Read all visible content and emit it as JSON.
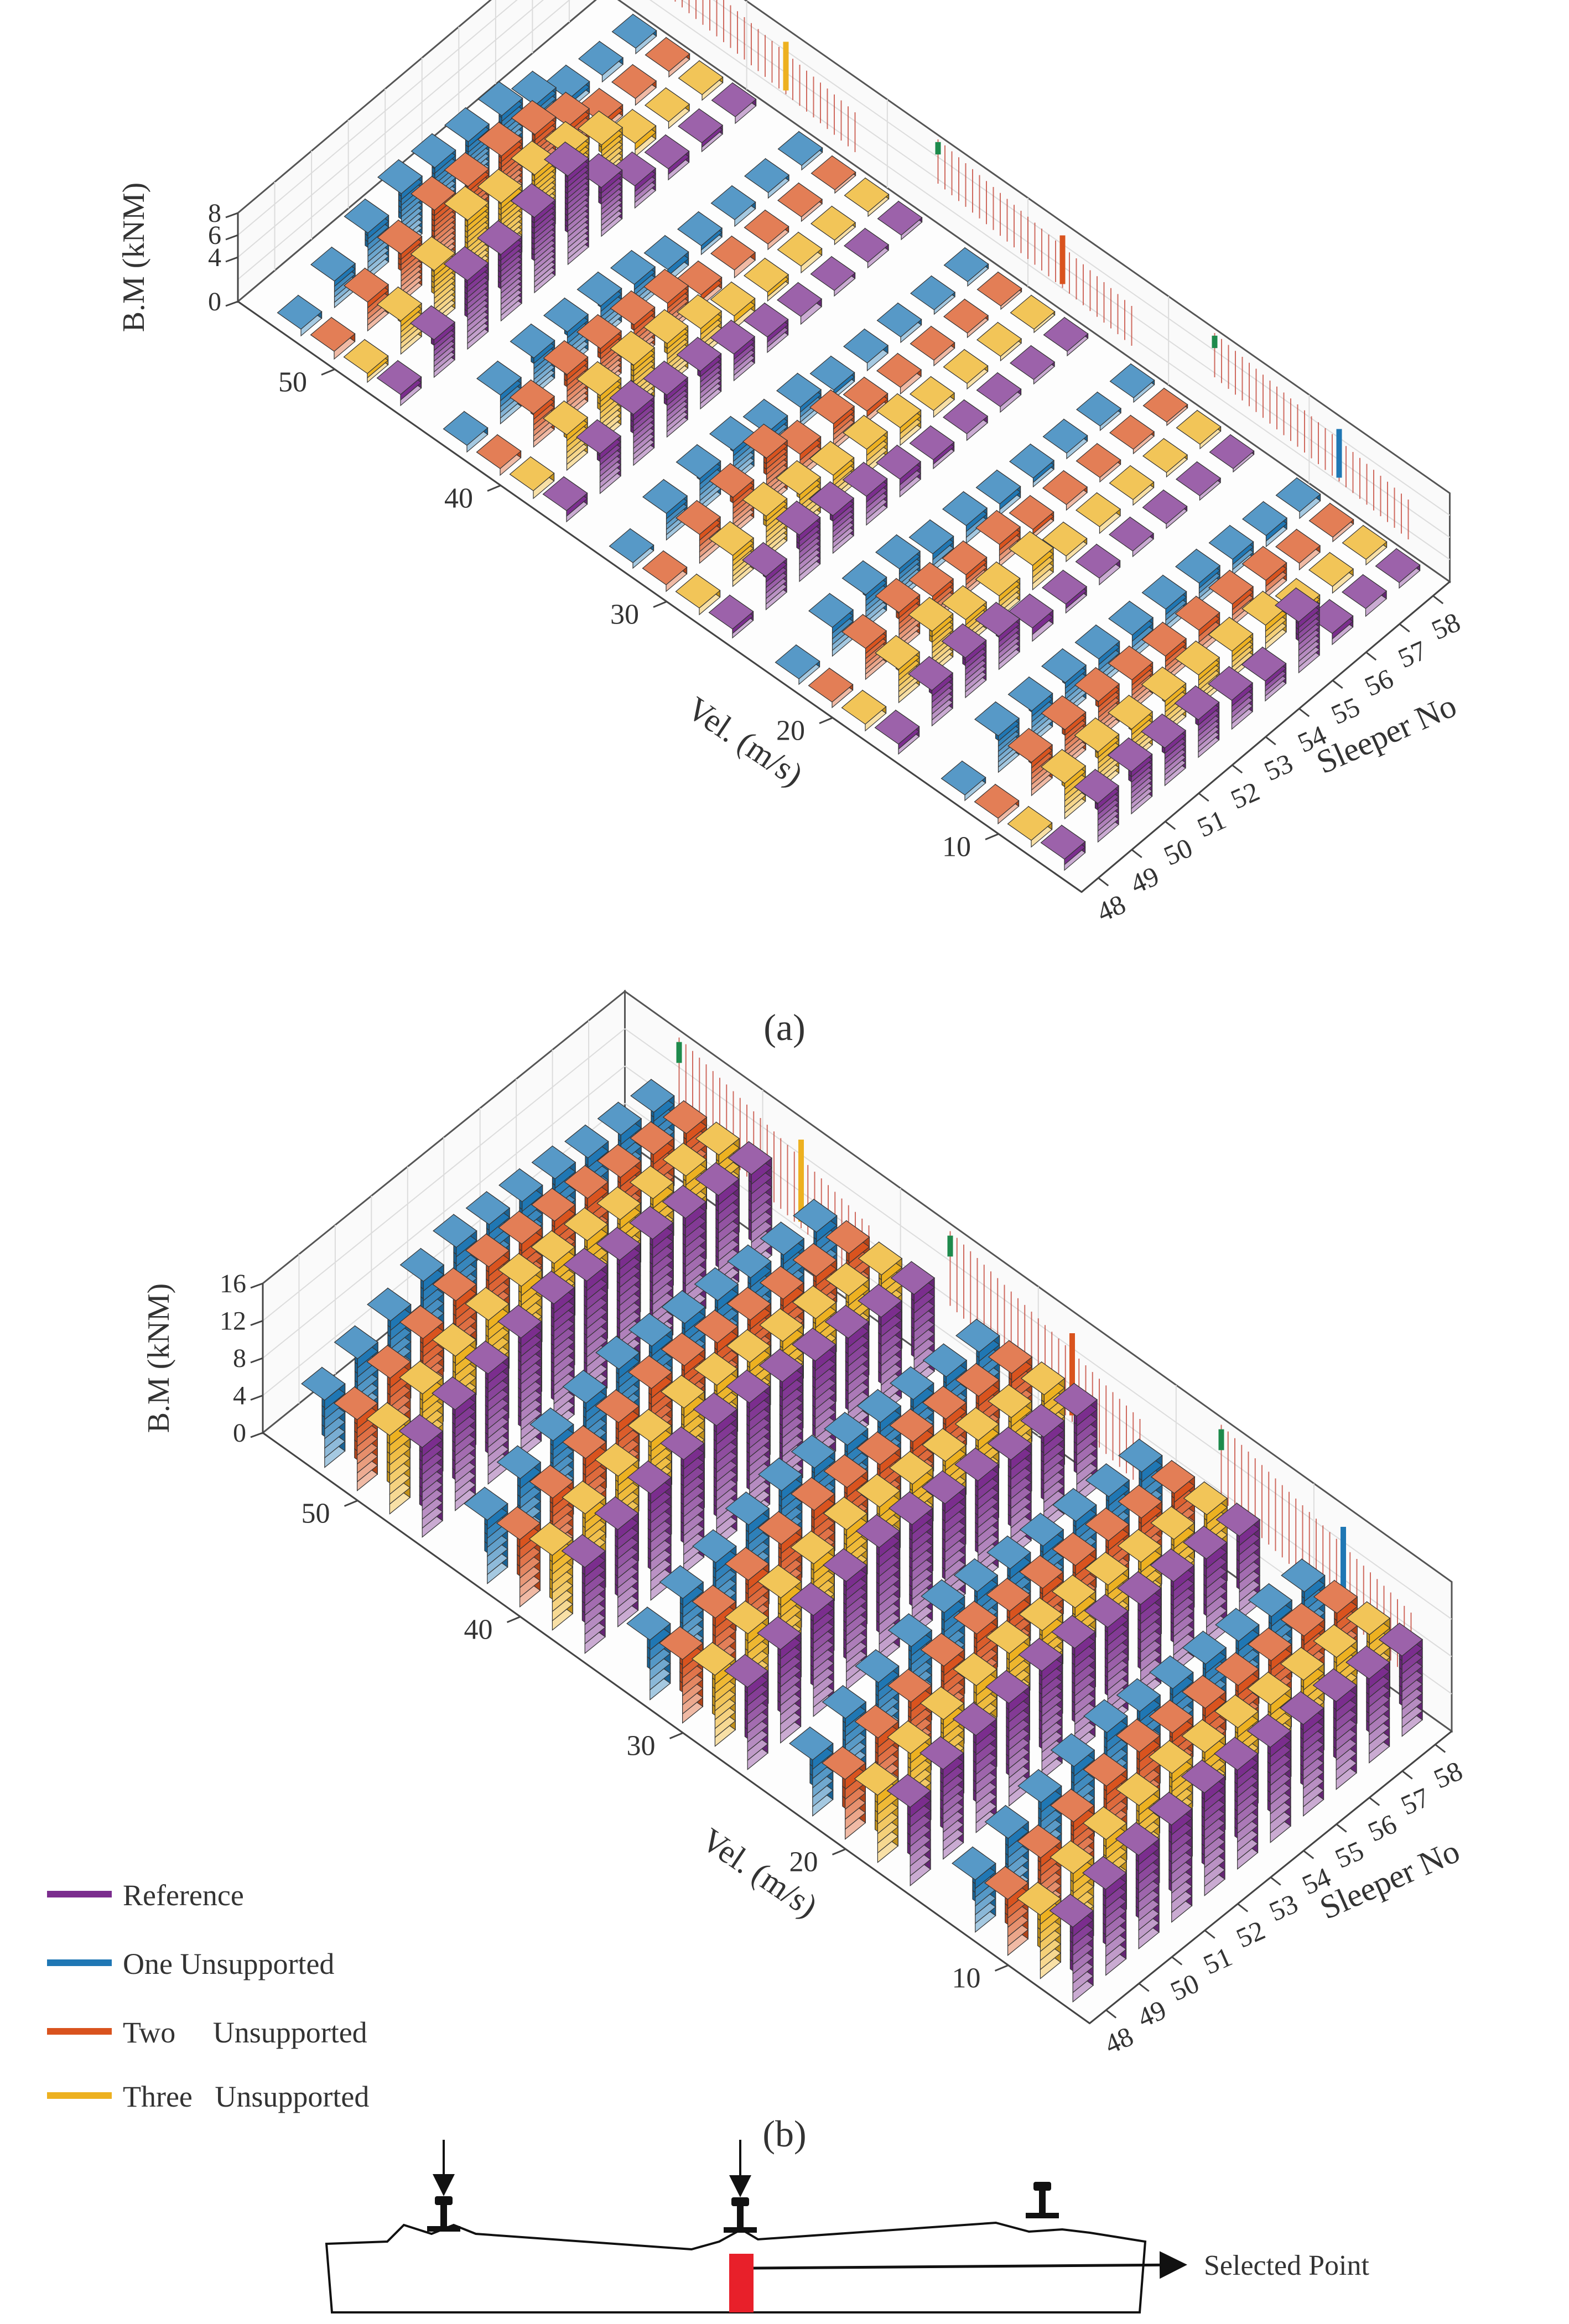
{
  "chart_data": [
    {
      "type": "bar3d",
      "panel_label": "(a)",
      "zlabel": "B.M (kNM)",
      "ylabel": "Vel. (m/s)",
      "xlabel": "Sleeper No",
      "z_ticks": [
        "0",
        "4",
        "6",
        "8"
      ],
      "zlim": [
        0,
        8
      ],
      "y_ticks": [
        "10",
        "20",
        "30",
        "40",
        "50"
      ],
      "x_ticks": [
        "48",
        "49",
        "50",
        "51",
        "52",
        "53",
        "54",
        "55",
        "56",
        "57",
        "58"
      ],
      "series_order": [
        "Reference",
        "Three Unsupported",
        "Two Unsupported",
        "One Unsupported"
      ],
      "groups": [
        {
          "velocity": 10,
          "values": [
            [
              1.0,
              0.6,
              0.5,
              0.5
            ],
            [
              3.5,
              3.2,
              3.0,
              3.3
            ],
            [
              3.8,
              3.5,
              3.4,
              3.0
            ],
            [
              3.4,
              3.0,
              3.4,
              3.0
            ],
            [
              3.4,
              3.0,
              2.8,
              2.6
            ],
            [
              2.6,
              2.8,
              2.4,
              2.2
            ],
            [
              1.8,
              2.4,
              2.2,
              2.0
            ],
            [
              4.6,
              2.2,
              2.0,
              1.8
            ],
            [
              1.0,
              0.8,
              1.6,
              1.4
            ],
            [
              0.7,
              0.6,
              0.6,
              1.0
            ],
            [
              0.5,
              0.5,
              0.4,
              0.6
            ]
          ]
        },
        {
          "velocity": 20,
          "values": [
            [
              0.9,
              0.6,
              0.5,
              0.5
            ],
            [
              3.2,
              3.0,
              2.8,
              2.6
            ],
            [
              3.6,
              3.9,
              3.5,
              3.0
            ],
            [
              3.0,
              2.4,
              2.4,
              2.8
            ],
            [
              1.2,
              2.0,
              1.8,
              1.6
            ],
            [
              0.8,
              2.2,
              2.0,
              1.6
            ],
            [
              0.6,
              0.5,
              0.8,
              1.0
            ],
            [
              0.5,
              0.6,
              0.5,
              0.8
            ],
            [
              0.4,
              0.5,
              0.4,
              0.5
            ],
            [
              0.4,
              0.4,
              0.4,
              0.4
            ],
            [
              0.3,
              0.4,
              0.3,
              0.4
            ]
          ]
        },
        {
          "velocity": 30,
          "values": [
            [
              0.8,
              0.6,
              0.6,
              0.5
            ],
            [
              3.0,
              2.8,
              2.6,
              2.4
            ],
            [
              4.2,
              3.8,
              3.4,
              3.0
            ],
            [
              3.4,
              3.2,
              4.4,
              3.0
            ],
            [
              2.6,
              2.4,
              2.2,
              2.0
            ],
            [
              1.6,
              2.2,
              2.4,
              1.8
            ],
            [
              0.8,
              1.6,
              1.0,
              0.8
            ],
            [
              0.6,
              0.6,
              0.6,
              0.7
            ],
            [
              0.5,
              0.5,
              0.5,
              0.5
            ],
            [
              0.4,
              0.4,
              0.4,
              0.4
            ],
            [
              0.4,
              0.3,
              0.3,
              0.4
            ]
          ]
        },
        {
          "velocity": 40,
          "values": [
            [
              1.0,
              0.7,
              0.6,
              0.6
            ],
            [
              3.6,
              3.2,
              3.0,
              2.6
            ],
            [
              4.6,
              4.2,
              4.0,
              3.4
            ],
            [
              3.8,
              4.4,
              3.8,
              3.2
            ],
            [
              3.4,
              3.8,
              3.4,
              3.0
            ],
            [
              2.4,
              2.6,
              2.8,
              2.4
            ],
            [
              1.4,
              1.2,
              1.0,
              1.2
            ],
            [
              0.7,
              0.8,
              0.7,
              0.8
            ],
            [
              0.5,
              0.6,
              0.5,
              0.6
            ],
            [
              0.5,
              0.4,
              0.4,
              0.5
            ],
            [
              0.4,
              0.4,
              0.3,
              0.4
            ]
          ]
        },
        {
          "velocity": 50,
          "values": [
            [
              1.0,
              0.8,
              0.7,
              0.6
            ],
            [
              3.4,
              3.0,
              2.6,
              2.4
            ],
            [
              6.2,
              5.0,
              4.4,
              4.2
            ],
            [
              6.0,
              7.0,
              5.8,
              5.2
            ],
            [
              6.8,
              6.0,
              5.4,
              5.0
            ],
            [
              8.0,
              6.0,
              5.6,
              4.8
            ],
            [
              4.4,
              5.2,
              5.0,
              4.6
            ],
            [
              2.0,
              3.6,
              3.2,
              3.0
            ],
            [
              1.0,
              1.2,
              1.0,
              1.0
            ],
            [
              0.8,
              0.6,
              0.6,
              0.6
            ],
            [
              0.6,
              0.5,
              0.5,
              0.5
            ]
          ]
        }
      ]
    },
    {
      "type": "bar3d",
      "panel_label": "(b)",
      "zlabel": "B.M (kNM)",
      "ylabel": "Vel. (m/s)",
      "xlabel": "Sleeper No",
      "z_ticks": [
        "0",
        "4",
        "8",
        "12",
        "16"
      ],
      "zlim": [
        0,
        16
      ],
      "y_ticks": [
        "10",
        "20",
        "30",
        "40",
        "50"
      ],
      "x_ticks": [
        "48",
        "49",
        "50",
        "51",
        "52",
        "53",
        "54",
        "55",
        "56",
        "57",
        "58"
      ],
      "series_order": [
        "Reference",
        "Three Unsupported",
        "Two Unsupported",
        "One Unsupported"
      ],
      "groups": [
        {
          "velocity": 10,
          "values": [
            [
              8.0,
              6.8,
              6.0,
              5.6
            ],
            [
              9.2,
              8.4,
              7.6,
              7.2
            ],
            [
              10.0,
              9.2,
              8.6,
              8.2
            ],
            [
              10.4,
              10.0,
              9.6,
              9.2
            ],
            [
              11.0,
              10.6,
              10.4,
              10.0
            ],
            [
              10.6,
              10.0,
              9.6,
              9.4
            ],
            [
              10.2,
              9.8,
              9.4,
              9.0
            ],
            [
              9.8,
              9.4,
              9.0,
              8.8
            ],
            [
              9.4,
              9.2,
              8.8,
              8.4
            ],
            [
              9.0,
              8.8,
              8.6,
              8.2
            ],
            [
              8.6,
              8.4,
              8.2,
              8.0
            ]
          ]
        },
        {
          "velocity": 20,
          "values": [
            [
              8.4,
              7.2,
              6.4,
              6.0
            ],
            [
              9.6,
              8.8,
              8.0,
              7.6
            ],
            [
              10.4,
              9.6,
              9.0,
              8.6
            ],
            [
              11.0,
              10.4,
              10.0,
              9.6
            ],
            [
              11.6,
              11.0,
              10.6,
              10.4
            ],
            [
              11.2,
              10.6,
              10.2,
              9.8
            ],
            [
              10.6,
              10.2,
              9.8,
              9.4
            ],
            [
              10.2,
              9.8,
              9.4,
              9.0
            ],
            [
              9.8,
              9.4,
              9.2,
              8.8
            ],
            [
              9.4,
              9.0,
              8.8,
              8.6
            ],
            [
              9.0,
              8.8,
              8.6,
              8.4
            ]
          ]
        },
        {
          "velocity": 30,
          "values": [
            [
              8.8,
              7.6,
              6.8,
              6.4
            ],
            [
              10.0,
              9.2,
              8.4,
              8.0
            ],
            [
              10.8,
              10.2,
              9.6,
              9.0
            ],
            [
              11.6,
              11.0,
              10.6,
              10.2
            ],
            [
              12.4,
              11.8,
              11.4,
              11.0
            ],
            [
              12.0,
              11.4,
              11.0,
              10.6
            ],
            [
              11.4,
              11.0,
              10.6,
              10.2
            ],
            [
              11.0,
              10.6,
              10.2,
              9.8
            ],
            [
              10.4,
              10.0,
              9.8,
              9.4
            ],
            [
              10.0,
              9.6,
              9.4,
              9.0
            ],
            [
              9.4,
              9.2,
              9.0,
              8.8
            ]
          ]
        },
        {
          "velocity": 40,
          "values": [
            [
              9.2,
              8.0,
              7.2,
              6.8
            ],
            [
              10.4,
              9.6,
              8.8,
              8.4
            ],
            [
              11.4,
              10.8,
              10.2,
              9.6
            ],
            [
              12.2,
              11.6,
              11.2,
              10.8
            ],
            [
              13.0,
              12.4,
              12.0,
              11.6
            ],
            [
              12.6,
              12.0,
              11.6,
              11.2
            ],
            [
              12.0,
              11.6,
              11.2,
              10.8
            ],
            [
              11.4,
              11.0,
              10.8,
              10.4
            ],
            [
              11.0,
              10.6,
              10.2,
              10.0
            ],
            [
              10.4,
              10.2,
              9.8,
              9.6
            ],
            [
              10.0,
              9.6,
              9.4,
              9.2
            ]
          ]
        },
        {
          "velocity": 50,
          "values": [
            [
              9.6,
              8.4,
              7.6,
              7.2
            ],
            [
              10.8,
              10.0,
              9.2,
              8.8
            ],
            [
              11.8,
              11.2,
              10.6,
              10.0
            ],
            [
              12.8,
              12.2,
              11.8,
              11.4
            ],
            [
              13.6,
              13.0,
              12.6,
              12.2
            ],
            [
              13.2,
              12.6,
              12.2,
              11.8
            ],
            [
              12.6,
              12.2,
              11.8,
              11.4
            ],
            [
              12.0,
              11.6,
              11.4,
              11.0
            ],
            [
              11.4,
              11.0,
              10.8,
              10.4
            ],
            [
              11.0,
              10.6,
              10.4,
              10.0
            ],
            [
              10.4,
              10.0,
              9.8,
              9.6
            ]
          ]
        }
      ]
    }
  ],
  "legend": [
    {
      "label": "Reference",
      "color": "#7b2d8e"
    },
    {
      "label": "One Unsupported",
      "color": "#1f77b4"
    },
    {
      "label": "Two     Unsupported",
      "color": "#d9531e"
    },
    {
      "label": "Three   Unsupported",
      "color": "#edb120"
    }
  ],
  "series_colors": {
    "Reference": "#7b2d8e",
    "Three Unsupported": "#edb120",
    "Two Unsupported": "#d9531e",
    "One Unsupported": "#1f77b4"
  },
  "diagram": {
    "selected_point_label": "Selected Point"
  }
}
